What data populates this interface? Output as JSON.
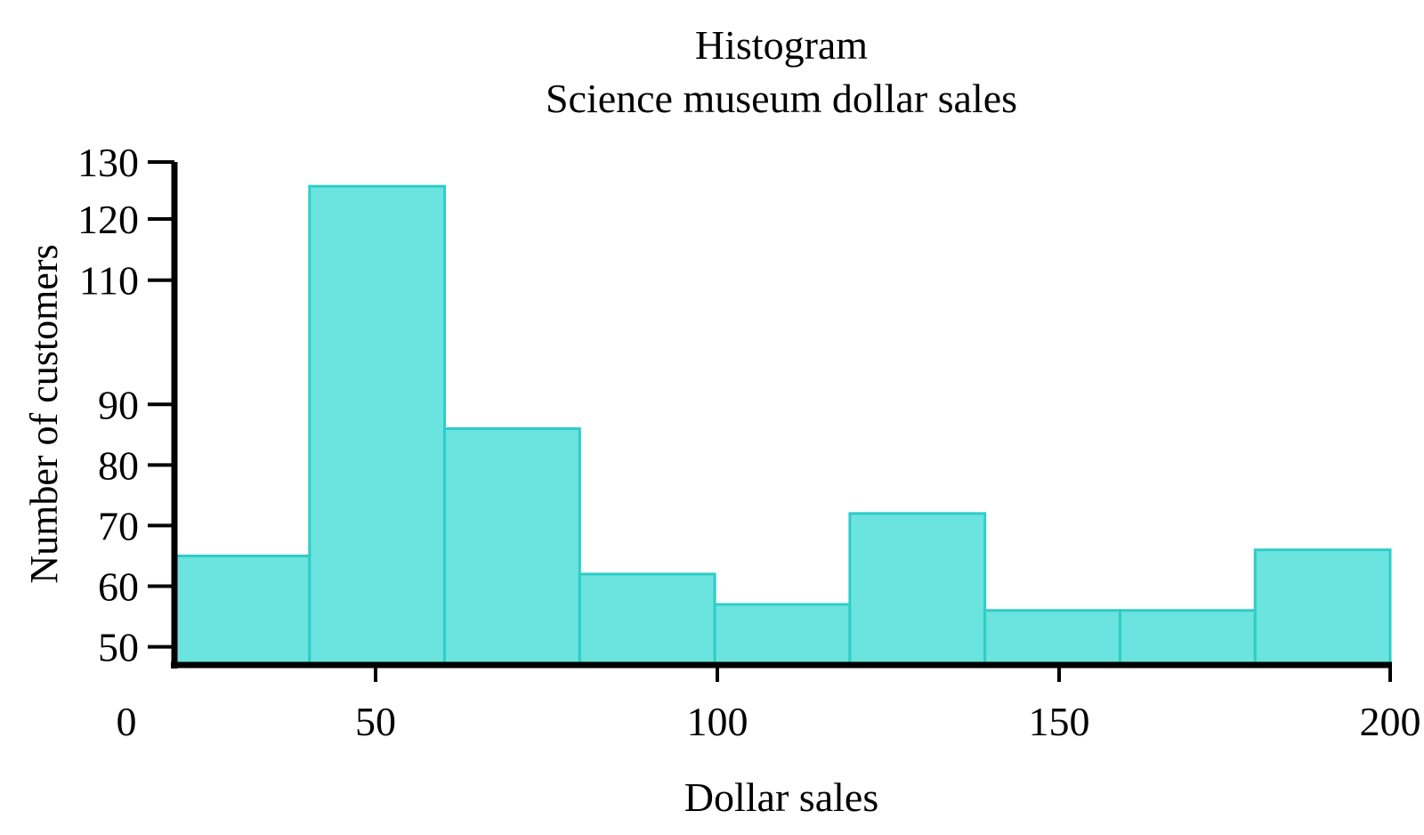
{
  "chart_data": {
    "type": "bar",
    "title": "Histogram",
    "subtitle": "Science museum dollar sales",
    "xlabel": "Dollar sales",
    "ylabel": "Number of customers",
    "bin_edges": [
      0,
      20,
      40,
      60,
      80,
      100,
      120,
      140,
      160,
      180
    ],
    "categories": [
      "0-20",
      "20-40",
      "40-60",
      "60-80",
      "80-100",
      "100-120",
      "120-140",
      "140-160",
      "160-180"
    ],
    "values": [
      65,
      126,
      86,
      62,
      57,
      72,
      56,
      56,
      66
    ],
    "x_tick_labels": [
      "0",
      "50",
      "100",
      "150",
      "200"
    ],
    "y_tick_labels": [
      "50",
      "60",
      "70",
      "80",
      "90",
      "110",
      "120",
      "130"
    ],
    "ylim": [
      47,
      130
    ],
    "grid": false,
    "bar_color": "#6be3df",
    "bar_edge_color": "#2ecdc8",
    "axis_color": "#000000"
  }
}
